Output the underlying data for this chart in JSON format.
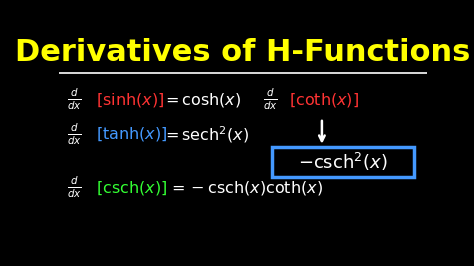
{
  "background_color": "#000000",
  "title_text": "Derivatives of H-Functions",
  "title_color": "#FFFF00",
  "title_fontsize": 22,
  "title_fontstyle": "bold",
  "separator_color": "#FFFFFF",
  "white": "#FFFFFF",
  "red_color": "#FF3333",
  "blue_color": "#4499FF",
  "green_color": "#33FF33",
  "box_color": "#4499FF"
}
